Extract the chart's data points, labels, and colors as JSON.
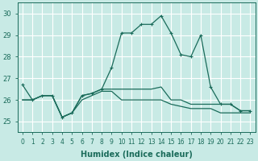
{
  "xlabel": "Humidex (Indice chaleur)",
  "bg_color": "#c8eae5",
  "grid_color": "#ffffff",
  "line_color": "#1a6b5a",
  "xlim": [
    -0.5,
    23.5
  ],
  "ylim": [
    24.5,
    30.5
  ],
  "yticks": [
    25,
    26,
    27,
    28,
    29,
    30
  ],
  "xticks": [
    0,
    1,
    2,
    3,
    4,
    5,
    6,
    7,
    8,
    9,
    10,
    11,
    12,
    13,
    14,
    15,
    16,
    17,
    18,
    19,
    20,
    21,
    22,
    23
  ],
  "line1_x": [
    0,
    1,
    2,
    3,
    4,
    5,
    6,
    7,
    8,
    9,
    10,
    11,
    12,
    13,
    14,
    15,
    16,
    17,
    18,
    19,
    20,
    21,
    22,
    23
  ],
  "line1_y": [
    26.7,
    26.0,
    26.2,
    26.2,
    25.2,
    25.4,
    26.2,
    26.3,
    26.5,
    27.5,
    29.1,
    29.1,
    29.5,
    29.5,
    29.9,
    29.1,
    28.1,
    28.0,
    29.0,
    26.6,
    25.8,
    25.8,
    25.5,
    25.5
  ],
  "line2_x": [
    0,
    1,
    2,
    3,
    4,
    5,
    6,
    7,
    8,
    9,
    10,
    11,
    12,
    13,
    14,
    15,
    16,
    17,
    18,
    19,
    20,
    21,
    22,
    23
  ],
  "line2_y": [
    26.0,
    26.0,
    26.2,
    26.2,
    25.2,
    25.4,
    26.2,
    26.3,
    26.5,
    26.5,
    26.5,
    26.5,
    26.5,
    26.5,
    26.6,
    26.0,
    26.0,
    25.8,
    25.8,
    25.8,
    25.8,
    25.8,
    25.5,
    25.5
  ],
  "line3_x": [
    0,
    1,
    2,
    3,
    4,
    5,
    6,
    7,
    8,
    9,
    10,
    11,
    12,
    13,
    14,
    15,
    16,
    17,
    18,
    19,
    20,
    21,
    22,
    23
  ],
  "line3_y": [
    26.0,
    26.0,
    26.2,
    26.2,
    25.2,
    25.4,
    26.0,
    26.2,
    26.4,
    26.4,
    26.0,
    26.0,
    26.0,
    26.0,
    26.0,
    25.8,
    25.7,
    25.6,
    25.6,
    25.6,
    25.4,
    25.4,
    25.4,
    25.4
  ],
  "xlabel_fontsize": 7,
  "tick_fontsize": 5.5,
  "ytick_fontsize": 6
}
